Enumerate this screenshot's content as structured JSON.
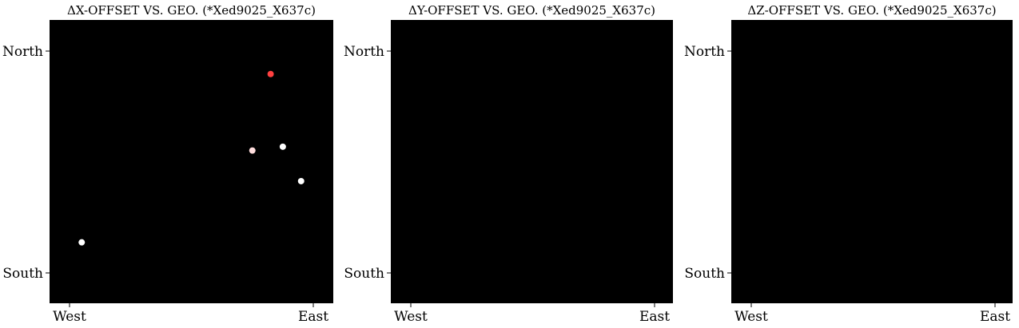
{
  "chart_data": [
    {
      "type": "scatter",
      "title": "ΔX-OFFSET VS. GEO. (*Xed9025_X637c)",
      "x_ticks": [
        "West",
        "East"
      ],
      "y_ticks": [
        "North",
        "South"
      ],
      "background": "#000000",
      "grid": false,
      "legend": "none",
      "points": [
        {
          "x": -1.8,
          "y": -0.8,
          "color": "#ffffff"
        },
        {
          "x": 1.8,
          "y": 0.0,
          "color": "#ffffff"
        },
        {
          "x": 1.5,
          "y": 0.45,
          "color": "#ffffff"
        },
        {
          "x": 1.3,
          "y": 1.4,
          "color": "#ff4040"
        },
        {
          "x": 1.0,
          "y": 0.4,
          "color": "#ffdddd"
        }
      ]
    },
    {
      "type": "scatter",
      "title": "ΔY-OFFSET VS. GEO. (*Xed9025_X637c)",
      "x_ticks": [
        "West",
        "East"
      ],
      "y_ticks": [
        "North",
        "South"
      ],
      "background": "#000000",
      "grid": false,
      "legend": "none",
      "points": []
    },
    {
      "type": "scatter",
      "title": "ΔZ-OFFSET VS. GEO. (*Xed9025_X637c)",
      "x_ticks": [
        "West",
        "East"
      ],
      "y_ticks": [
        "North",
        "South"
      ],
      "background": "#000000",
      "grid": false,
      "legend": "none",
      "points": []
    }
  ]
}
